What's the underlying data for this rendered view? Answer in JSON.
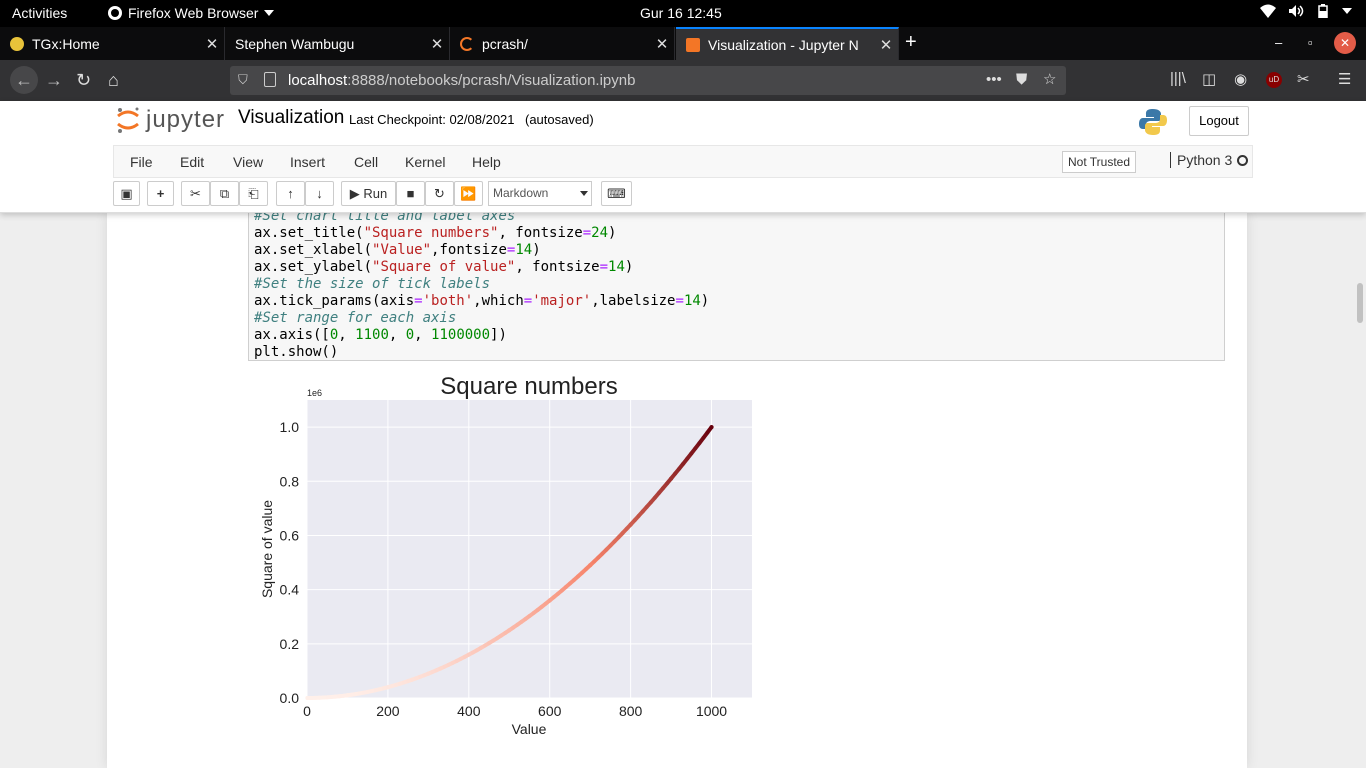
{
  "os": {
    "activities": "Activities",
    "app_name": "Firefox Web Browser",
    "clock": "Gur 16  12:45"
  },
  "tabs": [
    {
      "title": "TGx:Home",
      "close": "✕"
    },
    {
      "title": "Stephen Wambugu",
      "close": "✕"
    },
    {
      "title": "pcrash/",
      "close": "✕"
    },
    {
      "title": "Visualization - Jupyter N",
      "close": "✕"
    }
  ],
  "nav": {
    "url_host": "localhost",
    "url_rest": ":8888/notebooks/pcrash/Visualization.ipynb",
    "more": "•••"
  },
  "jupyter": {
    "logo_text": "jupyter",
    "notebook_name": "Visualization",
    "checkpoint": "Last Checkpoint: 02/08/2021",
    "autosave": "(autosaved)",
    "logout": "Logout",
    "menu": [
      "File",
      "Edit",
      "View",
      "Insert",
      "Cell",
      "Kernel",
      "Help"
    ],
    "trust": "Not Trusted",
    "kernel": "Python 3",
    "run_label": "Run",
    "cell_type": "Markdown"
  },
  "code_lines": [
    "#Set chart title and label axes",
    "ax.set_title(\"Square numbers\", fontsize=24)",
    "ax.set_xlabel(\"Value\",fontsize=14)",
    "ax.set_ylabel(\"Square of value\", fontsize=14)",
    "#Set the size of tick labels",
    "ax.tick_params(axis='both',which='major',labelsize=14)",
    "#Set range for each axis",
    "ax.axis([0, 1100, 0, 1100000])",
    "plt.show()"
  ],
  "chart_data": {
    "type": "scatter",
    "title": "Square numbers",
    "xlabel": "Value",
    "ylabel": "Square of value",
    "offset_text": "1e6",
    "xlim": [
      0,
      1100
    ],
    "ylim": [
      0,
      1100000
    ],
    "xticks": [
      0,
      200,
      400,
      600,
      800,
      1000
    ],
    "yticks": [
      0,
      200000,
      400000,
      600000,
      800000,
      1000000
    ],
    "ytick_labels": [
      "0.0",
      "0.2",
      "0.4",
      "0.6",
      "0.8",
      "1.0"
    ],
    "series": [
      {
        "x": [
          1,
          100,
          200,
          300,
          400,
          500,
          600,
          700,
          800,
          900,
          1000
        ],
        "y": [
          1,
          10000,
          40000,
          90000,
          160000,
          250000,
          360000,
          490000,
          640000,
          810000,
          1000000
        ]
      }
    ],
    "colormap": "Reds",
    "colors": {
      "background": "#eaeaf2",
      "grid": "#ffffff",
      "low": "#fff0ea",
      "mid": "#f6836a",
      "high": "#67000d"
    },
    "grid": true
  }
}
